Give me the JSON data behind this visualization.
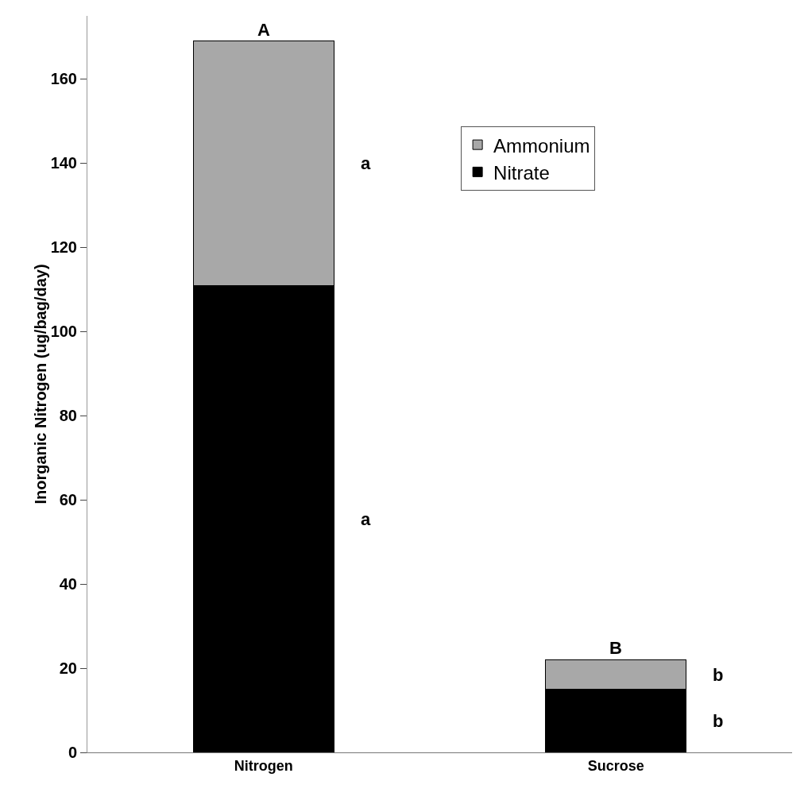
{
  "chart_data": {
    "type": "bar",
    "stacked": true,
    "ylabel": "Inorganic Nitrogen (ug/bag/day)",
    "categories": [
      "Nitrogen",
      "Sucrose"
    ],
    "series": [
      {
        "name": "Nitrate",
        "color": "#000000",
        "values": [
          111,
          15
        ]
      },
      {
        "name": "Ammonium",
        "color": "#a8a8a8",
        "values": [
          58,
          7
        ]
      }
    ],
    "ylim": [
      0,
      175
    ],
    "yticks": [
      0,
      20,
      40,
      60,
      80,
      100,
      120,
      140,
      160
    ],
    "grid": false,
    "legend": "top right",
    "annotations": [
      {
        "text": "A",
        "x": "Nitrogen",
        "y": 169
      },
      {
        "text": "B",
        "x": "Sucrose",
        "y": 22
      },
      "a",
      "a",
      "b",
      "b"
    ]
  }
}
